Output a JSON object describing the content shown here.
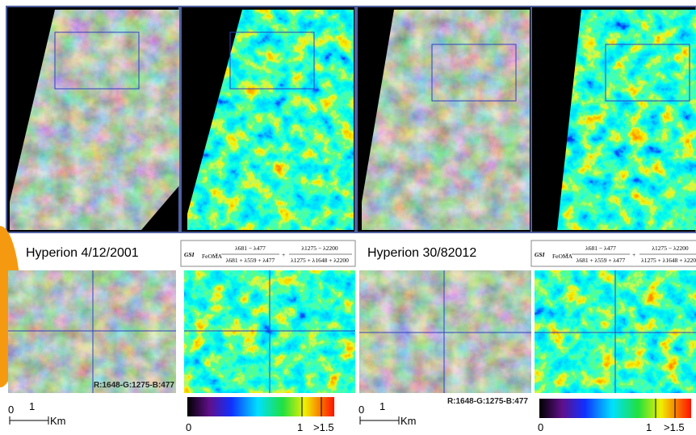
{
  "panels": {
    "left_title": "Hyperion 4/12/2001",
    "right_title": "Hyperion 30/82012",
    "left_bands": "R:1648-G:1275-B:477",
    "right_bands": "R:1648-G:1275-B:477"
  },
  "formula": {
    "lhs": "GSI",
    "sub": "FeOMA",
    "num1": "λ681 − λ477",
    "den1": "λ681 + λ559 + λ477",
    "num2": "λ1275 − λ2200",
    "den2": "λ1275 + λ1648 + λ2200"
  },
  "scale_bar": {
    "start": 0,
    "end": 1,
    "unit": "Km"
  },
  "colorbar": {
    "min": 0,
    "mid": 1,
    "max": ">1.5"
  }
}
